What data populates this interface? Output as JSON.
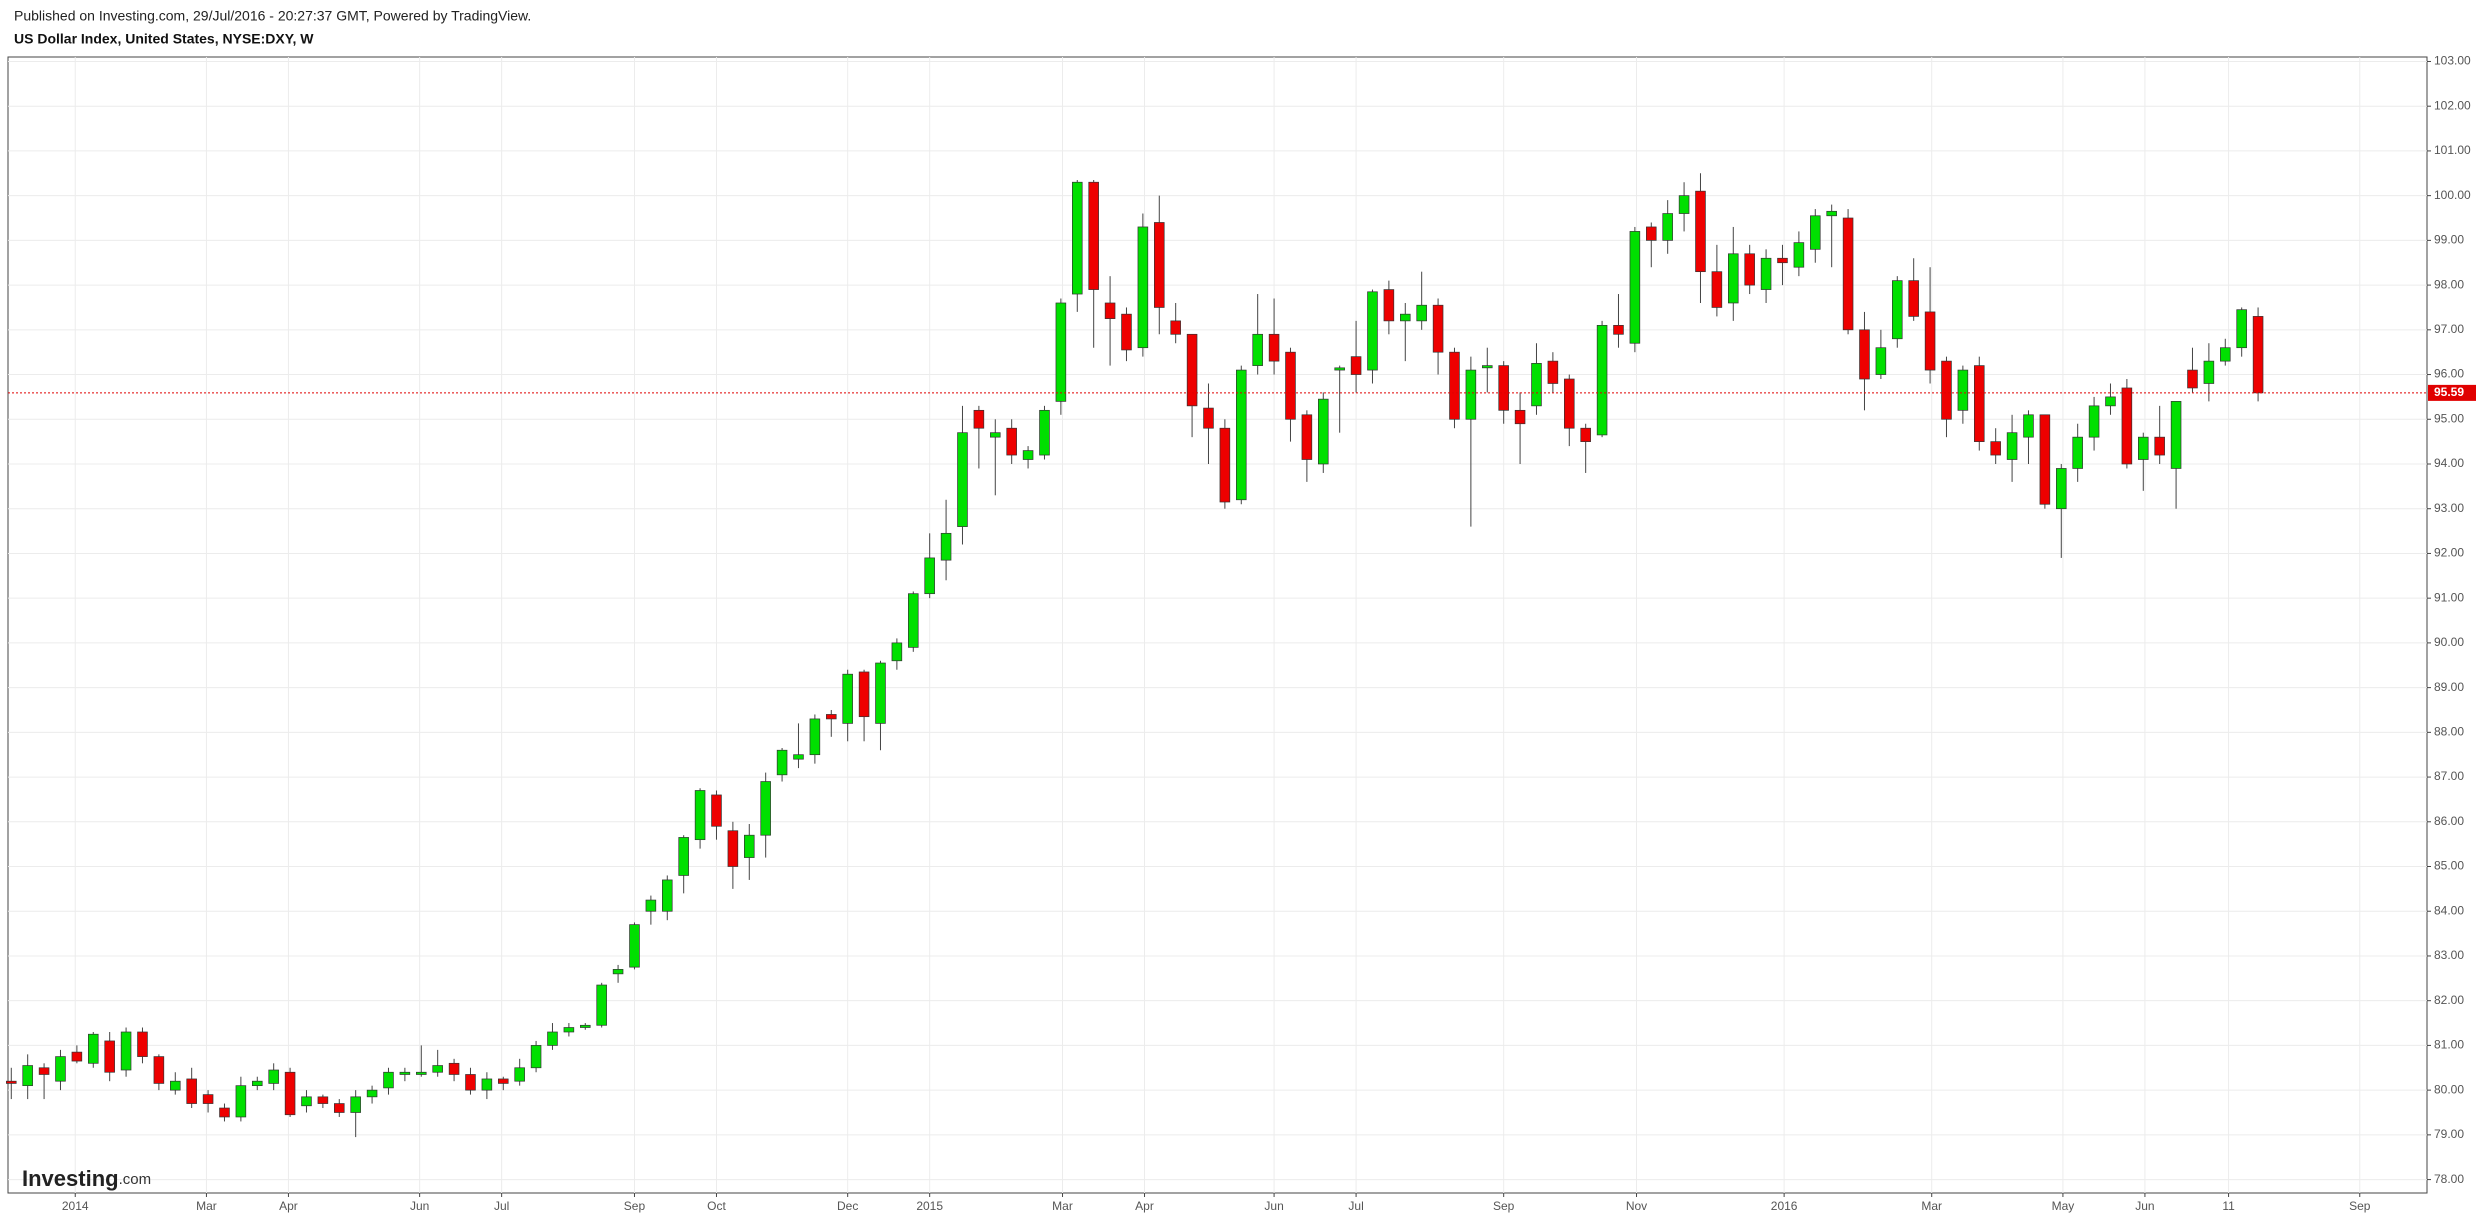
{
  "chart_data": {
    "type": "candlestick",
    "header": "Published on Investing.com, 29/Jul/2016 - 20:27:37 GMT, Powered by TradingView.",
    "title": "US Dollar Index, United States, NYSE:DXY, W",
    "watermark": "Investing",
    "watermark_suffix": ".com",
    "up_color": "#00e000",
    "down_color": "#ee0000",
    "last_price_color": "#e00000",
    "grid": true,
    "ylim": [
      77.7,
      103.1
    ],
    "yticks": [
      {
        "value": 78,
        "label": "78.00"
      },
      {
        "value": 79,
        "label": "79.00"
      },
      {
        "value": 80,
        "label": "80.00"
      },
      {
        "value": 81,
        "label": "81.00"
      },
      {
        "value": 82,
        "label": "82.00"
      },
      {
        "value": 83,
        "label": "83.00"
      },
      {
        "value": 84,
        "label": "84.00"
      },
      {
        "value": 85,
        "label": "85.00"
      },
      {
        "value": 86,
        "label": "86.00"
      },
      {
        "value": 87,
        "label": "87.00"
      },
      {
        "value": 88,
        "label": "88.00"
      },
      {
        "value": 89,
        "label": "89.00"
      },
      {
        "value": 90,
        "label": "90.00"
      },
      {
        "value": 91,
        "label": "91.00"
      },
      {
        "value": 92,
        "label": "92.00"
      },
      {
        "value": 93,
        "label": "93.00"
      },
      {
        "value": 94,
        "label": "94.00"
      },
      {
        "value": 95,
        "label": "95.00"
      },
      {
        "value": 96,
        "label": "96.00"
      },
      {
        "value": 97,
        "label": "97.00"
      },
      {
        "value": 98,
        "label": "98.00"
      },
      {
        "value": 99,
        "label": "99.00"
      },
      {
        "value": 100,
        "label": "100.00"
      },
      {
        "value": 101,
        "label": "101.00"
      },
      {
        "value": 102,
        "label": "102.00"
      },
      {
        "value": 103,
        "label": "103.00"
      }
    ],
    "xlim": [
      -0.2,
      147.3
    ],
    "xticks": [
      {
        "value": 3.9,
        "label": "2014"
      },
      {
        "value": 11.9,
        "label": "Mar"
      },
      {
        "value": 16.9,
        "label": "Apr"
      },
      {
        "value": 24.9,
        "label": "Jun"
      },
      {
        "value": 29.9,
        "label": "Jul"
      },
      {
        "value": 38.0,
        "label": "Sep"
      },
      {
        "value": 43.0,
        "label": "Oct"
      },
      {
        "value": 51.0,
        "label": "Dec"
      },
      {
        "value": 56.0,
        "label": "2015"
      },
      {
        "value": 64.1,
        "label": "Mar"
      },
      {
        "value": 69.1,
        "label": "Apr"
      },
      {
        "value": 77.0,
        "label": "Jun"
      },
      {
        "value": 82.0,
        "label": "Jul"
      },
      {
        "value": 91.0,
        "label": "Sep"
      },
      {
        "value": 99.1,
        "label": "Nov"
      },
      {
        "value": 108.1,
        "label": "2016"
      },
      {
        "value": 117.1,
        "label": "Mar"
      },
      {
        "value": 125.1,
        "label": "May"
      },
      {
        "value": 130.1,
        "label": "Jun"
      },
      {
        "value": 135.2,
        "label": "11"
      },
      {
        "value": 143.2,
        "label": "Sep"
      }
    ],
    "open": [
      80.2,
      80.1,
      80.5,
      80.2,
      80.85,
      80.6,
      81.1,
      80.45,
      81.3,
      80.75,
      80.0,
      80.25,
      79.9,
      79.6,
      79.4,
      80.1,
      80.15,
      80.4,
      79.65,
      79.85,
      79.7,
      79.5,
      79.85,
      80.05,
      80.35,
      80.35,
      80.4,
      80.6,
      80.35,
      80.0,
      80.25,
      80.2,
      80.5,
      81.0,
      81.3,
      81.4,
      81.45,
      82.6,
      82.75,
      84.0,
      84.0,
      84.8,
      85.6,
      86.6,
      85.8,
      85.2,
      85.7,
      87.05,
      87.4,
      87.5,
      88.4,
      88.2,
      89.35,
      88.2,
      89.6,
      89.9,
      91.1,
      91.85,
      92.6,
      95.2,
      94.6,
      94.8,
      94.1,
      94.2,
      95.4,
      97.8,
      100.3,
      97.6,
      97.35,
      96.6,
      99.4,
      97.2,
      96.9,
      95.25,
      94.8,
      93.2,
      96.2,
      96.9,
      96.5,
      95.1,
      94.0,
      96.1,
      96.4,
      96.1,
      97.9,
      97.2,
      97.2,
      97.55,
      96.5,
      95.0,
      96.15,
      96.2,
      95.2,
      95.3,
      96.3,
      95.9,
      94.8,
      94.65,
      97.1,
      96.7,
      99.3,
      99.0,
      99.6,
      100.1,
      98.3,
      97.6,
      98.7,
      97.9,
      98.6,
      98.4,
      98.8,
      99.55,
      99.5,
      97.0,
      96.0,
      96.8,
      98.1,
      97.4,
      96.3,
      95.2,
      96.2,
      94.5,
      94.1,
      94.6,
      95.1,
      93.0,
      93.9,
      94.6,
      95.3,
      95.7,
      94.1,
      94.6,
      93.9,
      96.1,
      95.8,
      96.3,
      96.6,
      97.3
    ],
    "high": [
      80.5,
      80.8,
      80.6,
      80.9,
      81.0,
      81.3,
      81.3,
      81.4,
      81.4,
      80.8,
      80.4,
      80.5,
      80.0,
      79.7,
      80.3,
      80.3,
      80.6,
      80.5,
      80.0,
      79.9,
      79.8,
      80.0,
      80.1,
      80.5,
      80.5,
      81.0,
      80.9,
      80.7,
      80.5,
      80.4,
      80.3,
      80.7,
      81.1,
      81.5,
      81.5,
      81.5,
      82.4,
      82.8,
      83.75,
      84.35,
      84.8,
      85.7,
      86.75,
      86.7,
      86.0,
      85.95,
      87.1,
      87.65,
      88.2,
      88.4,
      88.5,
      89.4,
      89.4,
      89.6,
      90.1,
      91.15,
      92.45,
      93.2,
      95.3,
      95.3,
      95.0,
      95.0,
      94.4,
      95.3,
      97.7,
      100.35,
      100.35,
      98.2,
      97.5,
      99.6,
      100.0,
      97.6,
      96.9,
      95.8,
      95.0,
      96.2,
      97.8,
      97.7,
      96.6,
      95.2,
      95.6,
      96.2,
      97.2,
      97.9,
      98.1,
      97.6,
      98.3,
      97.7,
      96.6,
      96.4,
      96.6,
      96.3,
      95.6,
      96.7,
      96.5,
      96.0,
      94.9,
      97.2,
      97.8,
      99.3,
      99.4,
      99.9,
      100.3,
      100.5,
      98.9,
      99.3,
      98.9,
      98.8,
      98.9,
      99.2,
      99.7,
      99.8,
      99.7,
      97.4,
      97.0,
      98.2,
      98.6,
      98.4,
      96.4,
      96.2,
      96.4,
      94.8,
      95.1,
      95.2,
      95.1,
      94.0,
      94.9,
      95.5,
      95.8,
      95.9,
      94.7,
      95.3,
      95.4,
      96.6,
      96.7,
      96.8,
      97.5,
      97.5
    ],
    "low": [
      79.8,
      79.8,
      79.8,
      80.0,
      80.6,
      80.5,
      80.2,
      80.3,
      80.6,
      80.0,
      79.9,
      79.6,
      79.5,
      79.3,
      79.3,
      80.0,
      80.0,
      79.4,
      79.5,
      79.6,
      79.4,
      78.95,
      79.7,
      79.9,
      80.2,
      80.3,
      80.3,
      80.2,
      79.9,
      79.8,
      80.0,
      80.1,
      80.4,
      80.9,
      81.2,
      81.35,
      81.4,
      82.4,
      82.7,
      83.7,
      83.8,
      84.4,
      85.4,
      85.6,
      84.5,
      84.7,
      85.2,
      86.9,
      87.2,
      87.3,
      87.9,
      87.8,
      87.8,
      87.6,
      89.4,
      89.8,
      91.0,
      91.4,
      92.2,
      93.9,
      93.3,
      94.0,
      93.9,
      94.1,
      95.1,
      97.4,
      96.6,
      96.2,
      96.3,
      96.4,
      96.9,
      96.7,
      94.6,
      94.0,
      93.0,
      93.1,
      96.0,
      96.0,
      94.5,
      93.6,
      93.8,
      94.7,
      95.6,
      95.8,
      96.9,
      96.3,
      97.0,
      96.0,
      94.8,
      92.6,
      95.6,
      94.9,
      94.0,
      95.1,
      95.6,
      94.4,
      93.8,
      94.6,
      96.6,
      96.5,
      98.4,
      98.7,
      99.2,
      97.6,
      97.3,
      97.2,
      97.8,
      97.6,
      98.0,
      98.2,
      98.5,
      98.4,
      96.9,
      95.2,
      95.9,
      96.6,
      97.2,
      95.8,
      94.6,
      94.9,
      94.3,
      94.0,
      93.6,
      94.0,
      93.0,
      91.9,
      93.6,
      94.3,
      95.1,
      93.9,
      93.4,
      94.0,
      93.0,
      95.6,
      95.4,
      96.2,
      96.4,
      95.4
    ],
    "close": [
      80.15,
      80.55,
      80.35,
      80.75,
      80.65,
      81.25,
      80.4,
      81.3,
      80.75,
      80.15,
      80.2,
      79.7,
      79.7,
      79.4,
      80.1,
      80.2,
      80.45,
      79.45,
      79.85,
      79.7,
      79.5,
      79.85,
      80.0,
      80.4,
      80.4,
      80.4,
      80.55,
      80.35,
      80.0,
      80.25,
      80.15,
      80.5,
      81.0,
      81.3,
      81.4,
      81.45,
      82.35,
      82.7,
      83.7,
      84.25,
      84.7,
      85.65,
      86.7,
      85.9,
      85.0,
      85.7,
      86.9,
      87.6,
      87.5,
      88.3,
      88.3,
      89.3,
      88.35,
      89.55,
      90.0,
      91.1,
      91.9,
      92.45,
      94.7,
      94.8,
      94.7,
      94.2,
      94.3,
      95.2,
      97.6,
      100.3,
      97.9,
      97.25,
      96.55,
      99.3,
      97.5,
      96.9,
      95.3,
      94.8,
      93.15,
      96.1,
      96.9,
      96.3,
      95.0,
      94.1,
      95.45,
      96.15,
      96.0,
      97.85,
      97.2,
      97.35,
      97.55,
      96.5,
      95.0,
      96.1,
      96.2,
      95.2,
      94.9,
      96.25,
      95.8,
      94.8,
      94.5,
      97.1,
      96.9,
      99.2,
      99.0,
      99.6,
      100.0,
      98.3,
      97.5,
      98.7,
      98.0,
      98.6,
      98.5,
      98.95,
      99.55,
      99.65,
      97.0,
      95.9,
      96.6,
      98.1,
      97.3,
      96.1,
      95.0,
      96.1,
      94.5,
      94.2,
      94.7,
      95.1,
      93.1,
      93.9,
      94.6,
      95.3,
      95.5,
      94.0,
      94.6,
      94.2,
      95.4,
      95.7,
      96.3,
      96.6,
      97.45,
      95.59
    ]
  }
}
